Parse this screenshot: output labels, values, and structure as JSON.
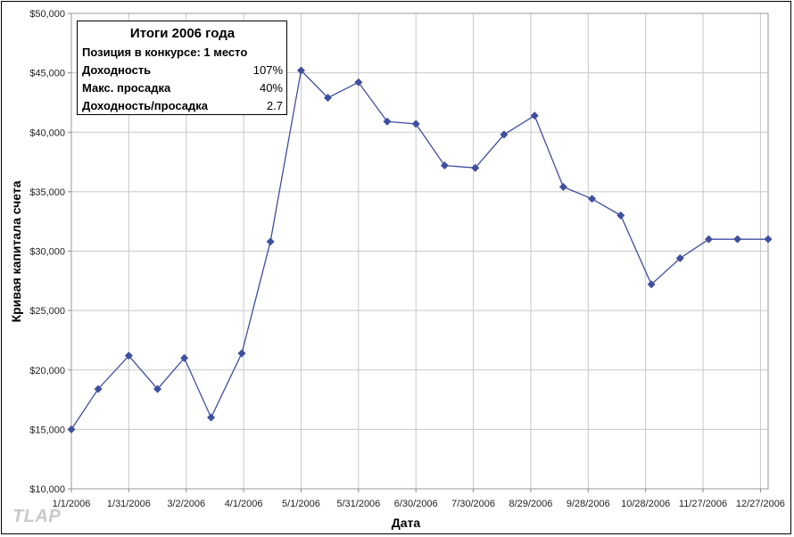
{
  "chart_data": {
    "type": "line",
    "ylabel": "Кривая капитала счета",
    "xlabel": "Дата",
    "ylim": [
      10000,
      50000
    ],
    "y_ticks": [
      "$10,000",
      "$15,000",
      "$20,000",
      "$25,000",
      "$30,000",
      "$35,000",
      "$40,000",
      "$45,000",
      "$50,000"
    ],
    "x_ticks": [
      "1/1/2006",
      "1/31/2006",
      "3/2/2006",
      "4/1/2006",
      "5/1/2006",
      "5/31/2006",
      "6/30/2006",
      "7/30/2006",
      "8/29/2006",
      "9/28/2006",
      "10/28/2006",
      "11/27/2006",
      "12/27/2006"
    ],
    "grid": true,
    "line_color": "#3f4fa0",
    "series": [
      {
        "x": [
          "1/1/2006",
          "1/15/2006",
          "1/31/2006",
          "2/15/2006",
          "3/1/2006",
          "3/15/2006",
          "3/31/2006",
          "4/15/2006",
          "5/1/2006",
          "5/15/2006",
          "5/31/2006",
          "6/15/2006",
          "6/30/2006",
          "7/15/2006",
          "7/31/2006",
          "8/15/2006",
          "8/31/2006",
          "9/15/2006",
          "9/30/2006",
          "10/15/2006",
          "10/31/2006",
          "11/15/2006",
          "11/30/2006",
          "12/15/2006",
          "12/31/2006"
        ],
        "y": [
          15000,
          18400,
          21200,
          18400,
          21000,
          16000,
          21400,
          30800,
          45200,
          42900,
          44200,
          40900,
          40700,
          37200,
          37000,
          39800,
          41400,
          35400,
          34400,
          33000,
          27200,
          29400,
          31000,
          31000,
          31000
        ]
      }
    ]
  },
  "stats": {
    "title": "Итоги 2006 года",
    "position": "Позиция в конкурсе: 1 место",
    "rows": [
      {
        "label": "Доходность",
        "value": "107%"
      },
      {
        "label": "Макс. просадка",
        "value": "40%"
      },
      {
        "label": "Доходность/просадка",
        "value": "2.7"
      }
    ]
  },
  "watermark": "TLAP"
}
